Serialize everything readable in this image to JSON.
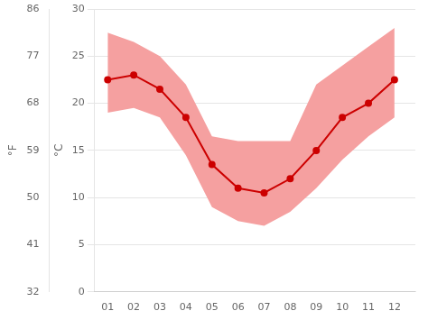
{
  "chart_data": {
    "type": "line",
    "x": [
      1,
      2,
      3,
      4,
      5,
      6,
      7,
      8,
      9,
      10,
      11,
      12
    ],
    "xlim": [
      0.5,
      12.8
    ],
    "xticks": [
      {
        "value": 1,
        "label": "01"
      },
      {
        "value": 2,
        "label": "02"
      },
      {
        "value": 3,
        "label": "03"
      },
      {
        "value": 4,
        "label": "04"
      },
      {
        "value": 5,
        "label": "05"
      },
      {
        "value": 6,
        "label": "06"
      },
      {
        "value": 7,
        "label": "07"
      },
      {
        "value": 8,
        "label": "08"
      },
      {
        "value": 9,
        "label": "09"
      },
      {
        "value": 10,
        "label": "10"
      },
      {
        "value": 11,
        "label": "11"
      },
      {
        "value": 12,
        "label": "12"
      }
    ],
    "ylim": [
      0,
      30
    ],
    "yticks": [
      0,
      5,
      10,
      15,
      20,
      25,
      30
    ],
    "ylabel": "°C",
    "y2lim": [
      32,
      86
    ],
    "y2ticks": [
      32,
      41,
      50,
      59,
      68,
      77,
      86
    ],
    "y2label": "°F",
    "grid": true,
    "series": [
      {
        "type": "area",
        "color": "#f5a0a0",
        "lower": [
          19,
          19.5,
          18.5,
          14.5,
          9,
          7.5,
          7,
          8.5,
          11,
          14,
          16.5,
          18.5
        ],
        "upper": [
          27.5,
          26.5,
          25,
          22,
          16.5,
          16,
          16,
          16,
          22,
          24,
          26,
          28
        ]
      },
      {
        "type": "line",
        "color": "#cc0000",
        "marker": "circle",
        "values": [
          22.5,
          23,
          21.5,
          18.5,
          13.5,
          11,
          10.5,
          12,
          15,
          18.5,
          20,
          22.5
        ]
      }
    ]
  }
}
